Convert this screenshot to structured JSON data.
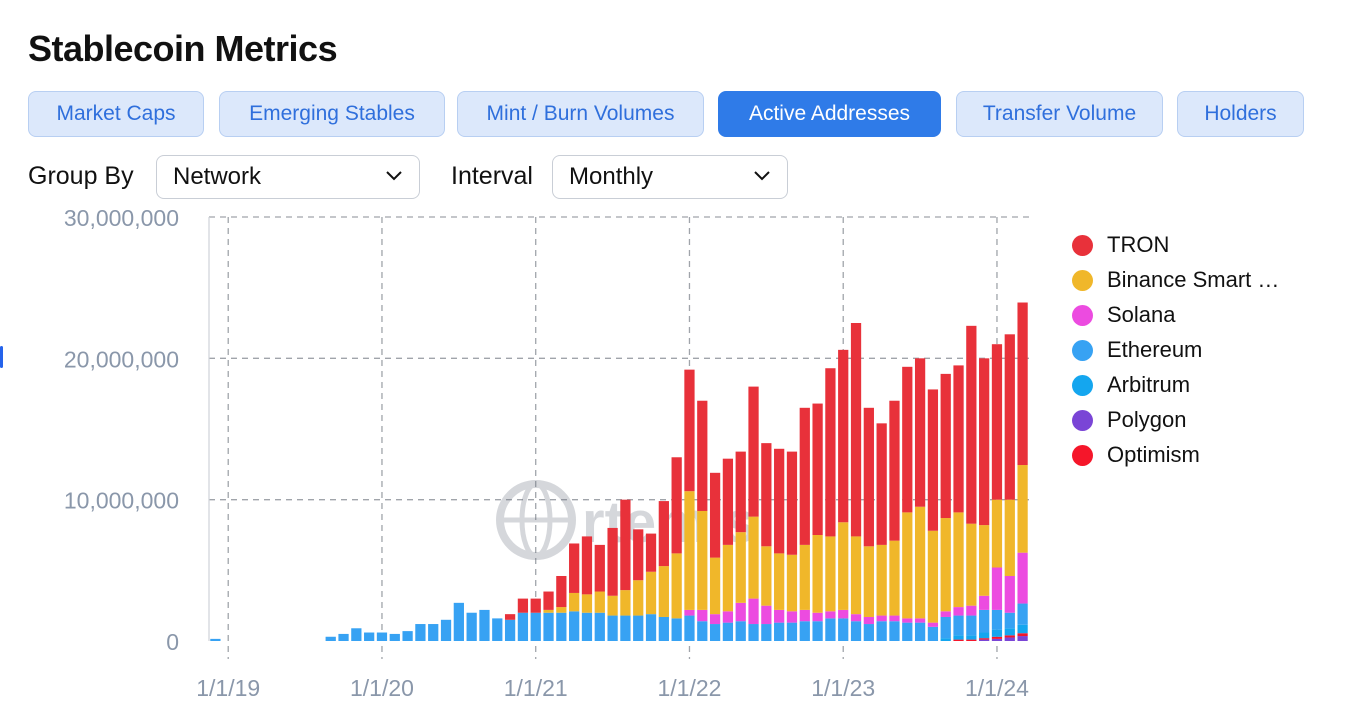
{
  "page": {
    "title": "Stablecoin Metrics"
  },
  "tabs": [
    {
      "label": "Market Caps",
      "active": false
    },
    {
      "label": "Emerging Stables",
      "active": false
    },
    {
      "label": "Mint / Burn Volumes",
      "active": false
    },
    {
      "label": "Active Addresses",
      "active": true
    },
    {
      "label": "Transfer Volume",
      "active": false
    },
    {
      "label": "Holders",
      "active": false
    }
  ],
  "controls": {
    "group_by": {
      "label": "Group By",
      "value": "Network"
    },
    "interval": {
      "label": "Interval",
      "value": "Monthly"
    }
  },
  "watermark": {
    "text": "rtemis"
  },
  "legend": [
    {
      "name": "TRON",
      "color": "#e8313a"
    },
    {
      "name": "Binance Smart …",
      "color": "#f0b72a"
    },
    {
      "name": "Solana",
      "color": "#ec4be0"
    },
    {
      "name": "Ethereum",
      "color": "#37a2f3"
    },
    {
      "name": "Arbitrum",
      "color": "#14a6ef"
    },
    {
      "name": "Polygon",
      "color": "#7a45d6"
    },
    {
      "name": "Optimism",
      "color": "#f5162a"
    }
  ],
  "chart_data": {
    "type": "bar",
    "stacked": true,
    "title": "Active Addresses",
    "xlabel": "",
    "ylabel": "",
    "ylim": [
      0,
      30000000
    ],
    "yticks": [
      0,
      10000000,
      20000000,
      30000000
    ],
    "ytick_labels": [
      "0",
      "10,000,000",
      "20,000,000",
      "30,000,000"
    ],
    "xtick_labels": [
      "1/1/19",
      "1/1/20",
      "1/1/21",
      "1/1/22",
      "1/1/23",
      "1/1/24"
    ],
    "grid": true,
    "legend_position": "right",
    "categories": [
      "Dec 2018",
      "Jan 2019",
      "Feb 2019",
      "Mar 2019",
      "Apr 2019",
      "May 2019",
      "Jun 2019",
      "Jul 2019",
      "Aug 2019",
      "Sep 2019",
      "Oct 2019",
      "Nov 2019",
      "Dec 2019",
      "Jan 2020",
      "Feb 2020",
      "Mar 2020",
      "Apr 2020",
      "May 2020",
      "Jun 2020",
      "Jul 2020",
      "Aug 2020",
      "Sep 2020",
      "Oct 2020",
      "Nov 2020",
      "Dec 2020",
      "Jan 2021",
      "Feb 2021",
      "Mar 2021",
      "Apr 2021",
      "May 2021",
      "Jun 2021",
      "Jul 2021",
      "Aug 2021",
      "Sep 2021",
      "Oct 2021",
      "Nov 2021",
      "Dec 2021",
      "Jan 2022",
      "Feb 2022",
      "Mar 2022",
      "Apr 2022",
      "May 2022",
      "Jun 2022",
      "Jul 2022",
      "Aug 2022",
      "Sep 2022",
      "Oct 2022",
      "Nov 2022",
      "Dec 2022",
      "Jan 2023",
      "Feb 2023",
      "Mar 2023",
      "Apr 2023",
      "May 2023",
      "Jun 2023",
      "Jul 2023",
      "Aug 2023",
      "Sep 2023",
      "Oct 2023",
      "Nov 2023",
      "Dec 2023",
      "Jan 2024",
      "Feb 2024",
      "Mar 2024"
    ],
    "series": [
      {
        "name": "Polygon",
        "values": [
          0,
          0,
          0,
          0,
          0,
          0,
          0,
          0,
          0,
          0,
          0,
          0,
          0,
          0,
          0,
          0,
          0,
          0,
          0,
          0,
          0,
          0,
          0,
          0,
          0,
          0,
          0,
          0,
          0,
          0,
          0,
          0,
          0,
          0,
          0,
          0,
          0,
          0,
          0,
          0,
          0,
          0,
          0,
          0,
          0,
          0,
          0,
          0,
          0,
          0,
          0,
          0,
          0,
          0,
          0,
          0,
          0,
          0,
          0,
          0,
          100000,
          150000,
          250000,
          350000
        ]
      },
      {
        "name": "Optimism",
        "values": [
          0,
          0,
          0,
          0,
          0,
          0,
          0,
          0,
          0,
          0,
          0,
          0,
          0,
          0,
          0,
          0,
          0,
          0,
          0,
          0,
          0,
          0,
          0,
          0,
          0,
          0,
          0,
          0,
          0,
          0,
          0,
          0,
          0,
          0,
          0,
          0,
          0,
          0,
          0,
          0,
          0,
          0,
          0,
          0,
          0,
          0,
          0,
          0,
          0,
          0,
          0,
          0,
          0,
          0,
          0,
          0,
          0,
          0,
          100000,
          100000,
          100000,
          150000,
          150000,
          200000
        ]
      },
      {
        "name": "Arbitrum",
        "values": [
          0,
          0,
          0,
          0,
          0,
          0,
          0,
          0,
          0,
          0,
          0,
          0,
          0,
          0,
          0,
          0,
          0,
          0,
          0,
          0,
          0,
          0,
          0,
          0,
          0,
          0,
          0,
          0,
          0,
          0,
          0,
          0,
          0,
          0,
          0,
          0,
          0,
          0,
          0,
          0,
          0,
          0,
          0,
          0,
          0,
          0,
          0,
          0,
          0,
          0,
          0,
          0,
          0,
          0,
          0,
          0,
          0,
          200000,
          300000,
          300000,
          400000,
          500000,
          500000,
          600000
        ]
      },
      {
        "name": "Ethereum",
        "values": [
          150000,
          0,
          0,
          0,
          0,
          0,
          0,
          0,
          0,
          300000,
          500000,
          900000,
          600000,
          600000,
          500000,
          700000,
          1200000,
          1200000,
          1500000,
          2700000,
          2000000,
          2200000,
          1600000,
          1500000,
          2000000,
          2000000,
          2000000,
          2000000,
          2100000,
          2000000,
          2000000,
          1800000,
          1800000,
          1800000,
          1900000,
          1700000,
          1600000,
          1800000,
          1400000,
          1200000,
          1300000,
          1400000,
          1200000,
          1200000,
          1300000,
          1300000,
          1400000,
          1400000,
          1600000,
          1600000,
          1400000,
          1200000,
          1400000,
          1400000,
          1300000,
          1300000,
          1000000,
          1500000,
          1400000,
          1400000,
          1600000,
          1400000,
          1100000,
          1500000
        ]
      },
      {
        "name": "Solana",
        "values": [
          0,
          0,
          0,
          0,
          0,
          0,
          0,
          0,
          0,
          0,
          0,
          0,
          0,
          0,
          0,
          0,
          0,
          0,
          0,
          0,
          0,
          0,
          0,
          0,
          0,
          0,
          0,
          0,
          0,
          0,
          0,
          0,
          0,
          0,
          0,
          0,
          0,
          400000,
          800000,
          700000,
          800000,
          1300000,
          1800000,
          1300000,
          900000,
          800000,
          800000,
          600000,
          500000,
          600000,
          500000,
          500000,
          400000,
          400000,
          300000,
          300000,
          300000,
          400000,
          600000,
          700000,
          1000000,
          3000000,
          2600000,
          3600000
        ]
      },
      {
        "name": "Binance Smart …",
        "values": [
          0,
          0,
          0,
          0,
          0,
          0,
          0,
          0,
          0,
          0,
          0,
          0,
          0,
          0,
          0,
          0,
          0,
          0,
          0,
          0,
          0,
          0,
          0,
          0,
          0,
          0,
          200000,
          400000,
          1300000,
          1300000,
          1500000,
          1400000,
          1800000,
          2500000,
          3000000,
          3600000,
          4600000,
          8400000,
          7000000,
          4000000,
          4700000,
          5000000,
          5800000,
          4200000,
          4000000,
          4000000,
          4600000,
          5500000,
          5300000,
          6200000,
          5500000,
          5000000,
          5000000,
          5300000,
          7500000,
          7900000,
          6500000,
          6600000,
          6700000,
          5800000,
          5000000,
          4800000,
          5400000,
          6200000
        ]
      },
      {
        "name": "TRON",
        "values": [
          0,
          0,
          0,
          0,
          0,
          0,
          0,
          0,
          0,
          0,
          0,
          0,
          0,
          0,
          0,
          0,
          0,
          0,
          0,
          0,
          0,
          0,
          0,
          400000,
          1000000,
          1000000,
          1300000,
          2200000,
          3500000,
          4100000,
          3300000,
          4800000,
          6400000,
          3600000,
          2700000,
          4600000,
          6800000,
          8600000,
          7800000,
          6000000,
          6100000,
          5700000,
          9200000,
          7300000,
          7400000,
          7300000,
          9700000,
          9300000,
          11900000,
          12200000,
          15100000,
          9800000,
          8600000,
          9900000,
          10300000,
          10500000,
          10000000,
          10200000,
          10400000,
          14000000,
          11800000,
          11000000,
          11700000,
          11500000
        ]
      }
    ]
  }
}
